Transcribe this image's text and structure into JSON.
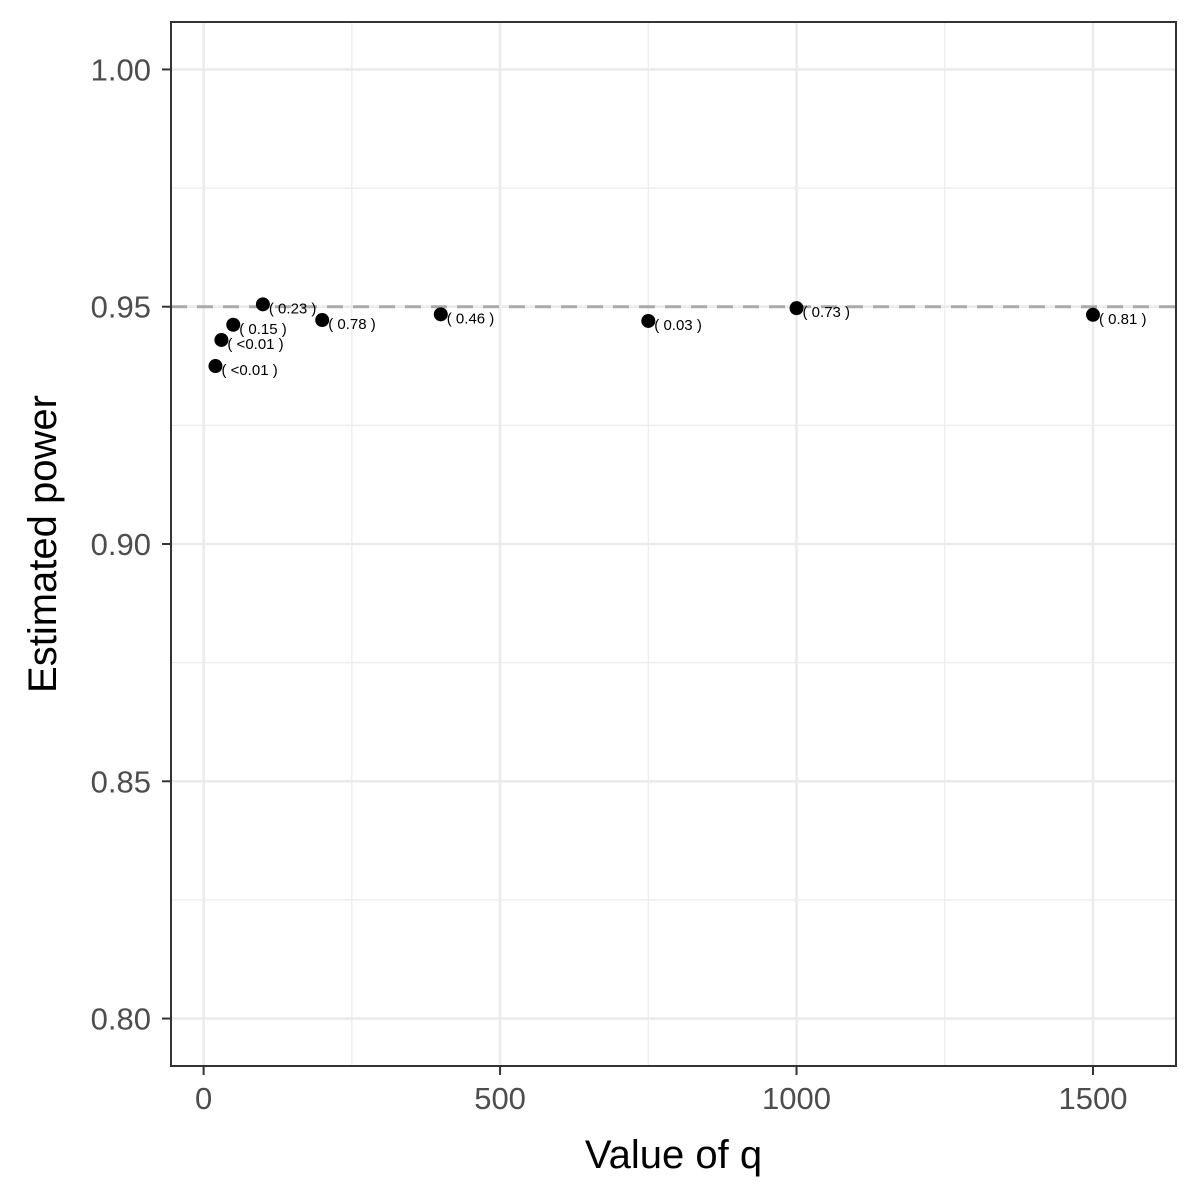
{
  "chart_data": {
    "type": "scatter",
    "title": "",
    "xlabel": "Value of q",
    "ylabel": "Estimated power",
    "xlim": [
      -55,
      1640
    ],
    "ylim": [
      0.79,
      1.01
    ],
    "x_ticks": [
      0,
      500,
      1000,
      1500
    ],
    "x_tick_labels": [
      "0",
      "500",
      "1000",
      "1500"
    ],
    "y_ticks": [
      0.8,
      0.85,
      0.9,
      0.95,
      1.0
    ],
    "y_tick_labels": [
      "0.80",
      "0.85",
      "0.90",
      "0.95",
      "1.00"
    ],
    "x_minor_gridlines": [
      250,
      750,
      1250
    ],
    "y_minor_gridlines": [
      0.825,
      0.875,
      0.925,
      0.975
    ],
    "reference_line": {
      "y": 0.95,
      "style": "dashed",
      "color": "#aaaaaa"
    },
    "grid": true,
    "legend": "none",
    "points": [
      {
        "x": 20,
        "y": 0.9375,
        "label": "( <0.01 )"
      },
      {
        "x": 30,
        "y": 0.943,
        "label": "( <0.01 )"
      },
      {
        "x": 50,
        "y": 0.9462,
        "label": "( 0.15 )"
      },
      {
        "x": 100,
        "y": 0.9505,
        "label": "( 0.23 )"
      },
      {
        "x": 200,
        "y": 0.9472,
        "label": "( 0.78 )"
      },
      {
        "x": 400,
        "y": 0.9484,
        "label": "( 0.46 )"
      },
      {
        "x": 750,
        "y": 0.947,
        "label": "( 0.03 )"
      },
      {
        "x": 1000,
        "y": 0.9497,
        "label": "( 0.73 )"
      },
      {
        "x": 1500,
        "y": 0.9483,
        "label": "( 0.81 )"
      }
    ],
    "colors": {
      "points": "#000000",
      "grid": "#ebebeb",
      "panel_border": "#333333",
      "ticks": "#333333"
    }
  }
}
